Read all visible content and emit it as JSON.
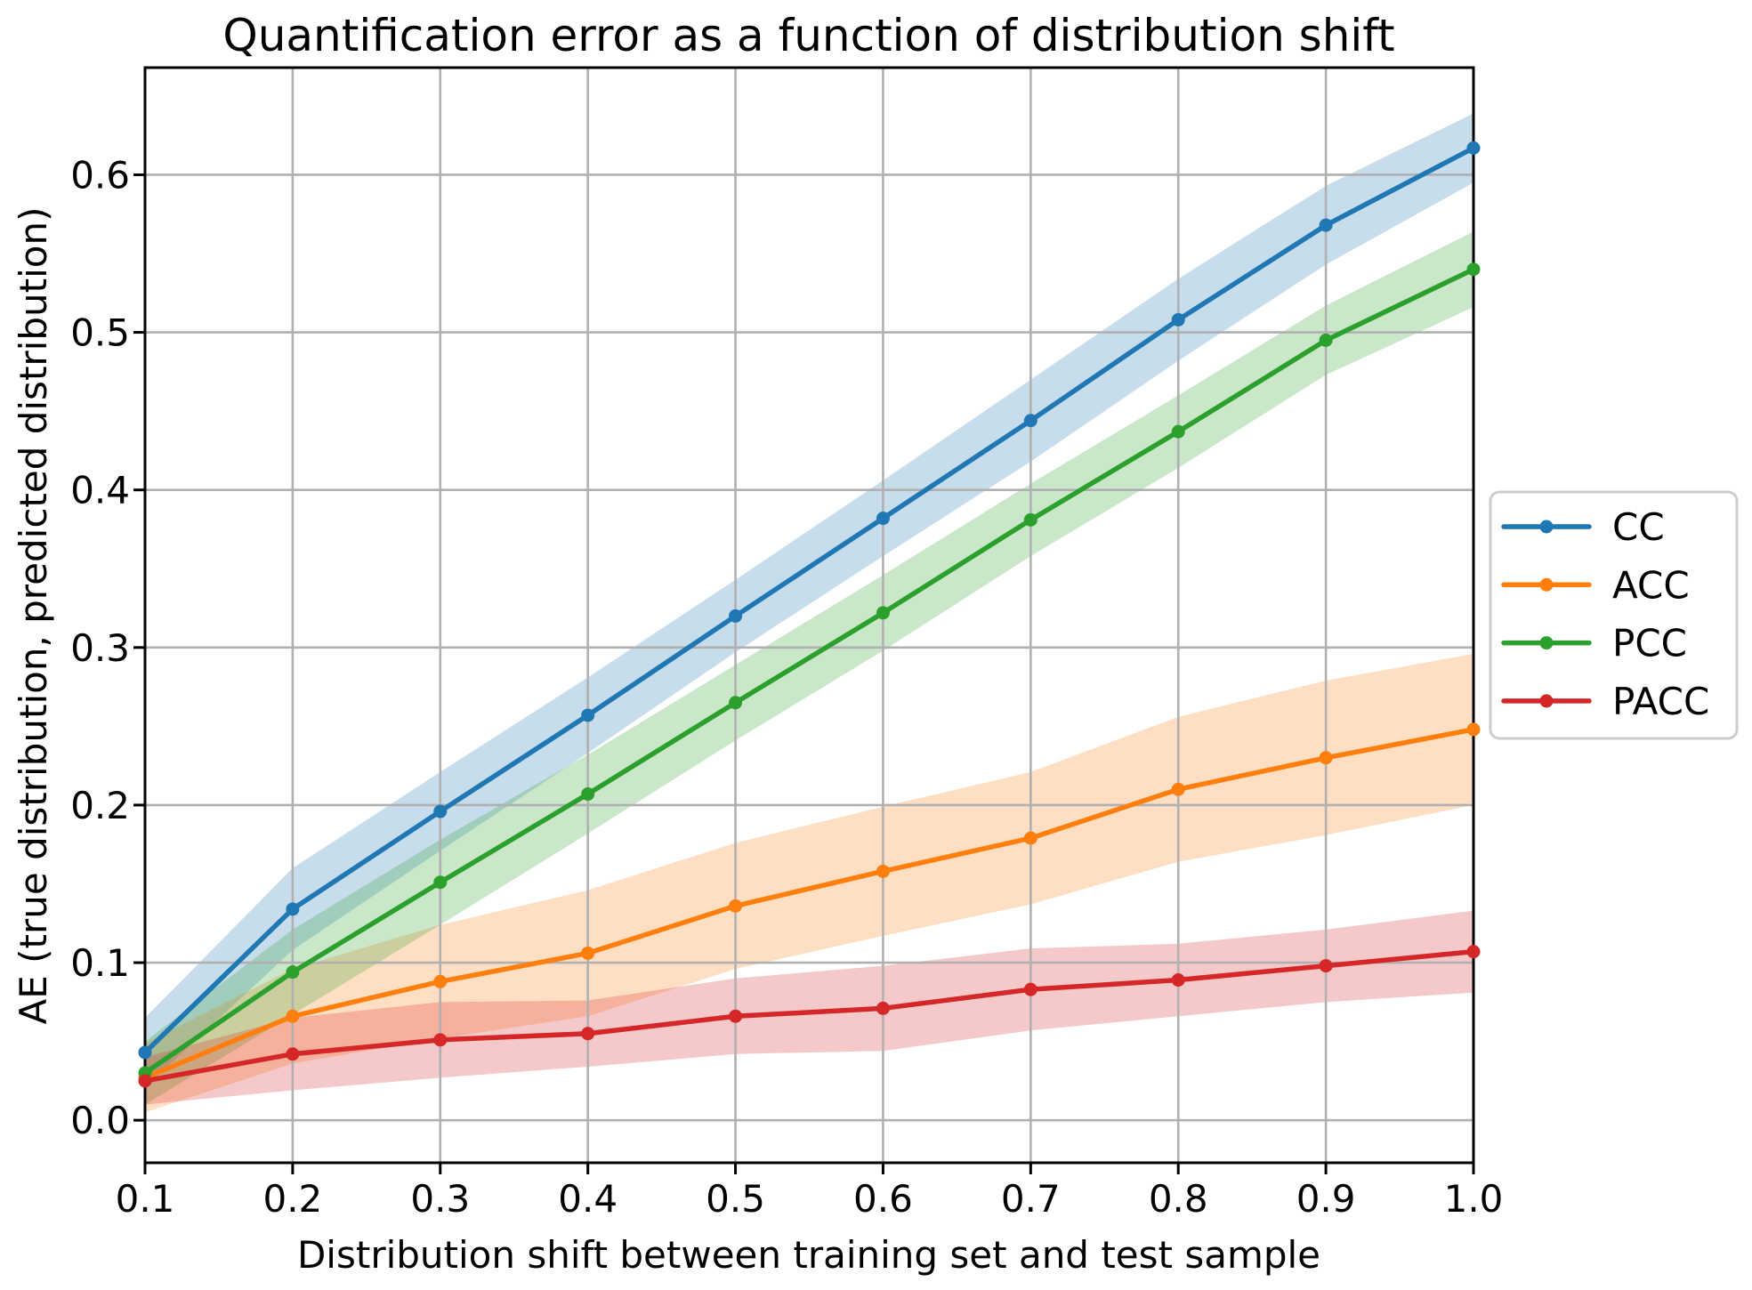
{
  "chart_data": {
    "type": "line",
    "title": "Quantification error as a function of distribution shift",
    "xlabel": "Distribution shift between training set and test sample",
    "ylabel": "AE (true distribution, predicted distribution)",
    "xlim": [
      0.1,
      1.0
    ],
    "ylim": [
      -0.027,
      0.668
    ],
    "grid": true,
    "grid_color": "#b0b0b0",
    "spine_color": "#000000",
    "band_alpha": 0.25,
    "legend_position": "outside right, vertically centered",
    "legend_border_color": "#cccccc",
    "x": [
      0.1,
      0.2,
      0.3,
      0.4,
      0.5,
      0.6,
      0.7,
      0.8,
      0.9,
      1.0
    ],
    "x_ticklabels": [
      "0.1",
      "0.2",
      "0.3",
      "0.4",
      "0.5",
      "0.6",
      "0.7",
      "0.8",
      "0.9",
      "1.0"
    ],
    "y_ticks": [
      0.0,
      0.1,
      0.2,
      0.3,
      0.4,
      0.5,
      0.6
    ],
    "y_ticklabels": [
      "0.0",
      "0.1",
      "0.2",
      "0.3",
      "0.4",
      "0.5",
      "0.6"
    ],
    "series": [
      {
        "name": "CC",
        "color": "#1f77b4",
        "values": [
          0.043,
          0.134,
          0.196,
          0.257,
          0.32,
          0.382,
          0.444,
          0.508,
          0.568,
          0.617
        ],
        "band_halfwidth": [
          0.022,
          0.026,
          0.025,
          0.024,
          0.023,
          0.024,
          0.026,
          0.026,
          0.025,
          0.022
        ]
      },
      {
        "name": "ACC",
        "color": "#ff7f0e",
        "values": [
          0.027,
          0.066,
          0.088,
          0.106,
          0.136,
          0.158,
          0.179,
          0.21,
          0.23,
          0.248
        ],
        "band_halfwidth": [
          0.022,
          0.03,
          0.036,
          0.04,
          0.04,
          0.041,
          0.042,
          0.046,
          0.049,
          0.048
        ]
      },
      {
        "name": "PCC",
        "color": "#2ca02c",
        "values": [
          0.03,
          0.094,
          0.151,
          0.207,
          0.265,
          0.322,
          0.381,
          0.437,
          0.495,
          0.54
        ],
        "band_halfwidth": [
          0.02,
          0.027,
          0.027,
          0.025,
          0.024,
          0.024,
          0.023,
          0.023,
          0.022,
          0.024
        ]
      },
      {
        "name": "PACC",
        "color": "#d62728",
        "values": [
          0.025,
          0.042,
          0.051,
          0.055,
          0.066,
          0.071,
          0.083,
          0.089,
          0.098,
          0.107
        ],
        "band_halfwidth": [
          0.015,
          0.023,
          0.024,
          0.021,
          0.024,
          0.027,
          0.026,
          0.023,
          0.023,
          0.026
        ]
      }
    ]
  }
}
